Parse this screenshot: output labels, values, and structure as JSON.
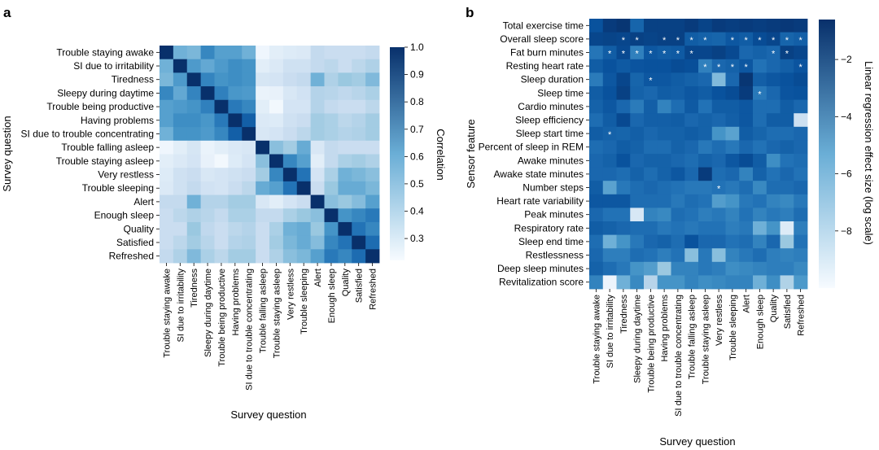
{
  "chart_data": [
    {
      "type": "heatmap",
      "panel": "a",
      "ylabel": "Survey question",
      "xlabel": "Survey question",
      "rows": [
        "Trouble staying awake",
        "SI due to irritability",
        "Tiredness",
        "Sleepy during daytime",
        "Trouble being productive",
        "Having problems",
        "SI due to trouble concentrating",
        "Trouble falling asleep",
        "Trouble staying asleep",
        "Very restless",
        "Trouble sleeping",
        "Alert",
        "Enough sleep",
        "Quality",
        "Satisfied",
        "Refreshed"
      ],
      "columns": [
        "Trouble staying awake",
        "SI due to irritability",
        "Tiredness",
        "Sleepy during daytime",
        "Trouble being productive",
        "Having problems",
        "SI due to trouble concentrating",
        "Trouble falling asleep",
        "Trouble staying asleep",
        "Very restless",
        "Trouble sleeping",
        "Alert",
        "Enough sleep",
        "Quality",
        "Satisfied",
        "Refreshed"
      ],
      "values": [
        [
          1.0,
          0.6,
          0.58,
          0.74,
          0.66,
          0.66,
          0.6,
          0.25,
          0.3,
          0.32,
          0.33,
          0.42,
          0.4,
          0.4,
          0.4,
          0.42
        ],
        [
          0.6,
          1.0,
          0.68,
          0.63,
          0.68,
          0.72,
          0.7,
          0.3,
          0.33,
          0.38,
          0.38,
          0.42,
          0.44,
          0.4,
          0.44,
          0.47
        ],
        [
          0.58,
          0.68,
          1.0,
          0.75,
          0.7,
          0.72,
          0.7,
          0.35,
          0.36,
          0.4,
          0.42,
          0.6,
          0.47,
          0.52,
          0.5,
          0.57
        ],
        [
          0.74,
          0.63,
          0.75,
          1.0,
          0.76,
          0.69,
          0.68,
          0.27,
          0.28,
          0.34,
          0.37,
          0.46,
          0.45,
          0.43,
          0.45,
          0.48
        ],
        [
          0.66,
          0.68,
          0.7,
          0.76,
          1.0,
          0.78,
          0.74,
          0.3,
          0.24,
          0.36,
          0.36,
          0.46,
          0.42,
          0.4,
          0.4,
          0.44
        ],
        [
          0.66,
          0.72,
          0.72,
          0.69,
          0.78,
          1.0,
          0.86,
          0.33,
          0.32,
          0.38,
          0.4,
          0.5,
          0.48,
          0.44,
          0.46,
          0.5
        ],
        [
          0.6,
          0.7,
          0.7,
          0.68,
          0.74,
          0.86,
          1.0,
          0.34,
          0.36,
          0.4,
          0.44,
          0.5,
          0.48,
          0.46,
          0.47,
          0.5
        ],
        [
          0.25,
          0.3,
          0.35,
          0.27,
          0.3,
          0.33,
          0.34,
          1.0,
          0.55,
          0.5,
          0.62,
          0.34,
          0.42,
          0.4,
          0.4,
          0.4
        ],
        [
          0.3,
          0.33,
          0.36,
          0.28,
          0.24,
          0.32,
          0.36,
          0.55,
          1.0,
          0.74,
          0.66,
          0.3,
          0.42,
          0.48,
          0.5,
          0.47
        ],
        [
          0.32,
          0.38,
          0.4,
          0.34,
          0.36,
          0.38,
          0.4,
          0.5,
          0.74,
          1.0,
          0.8,
          0.36,
          0.48,
          0.6,
          0.58,
          0.55
        ],
        [
          0.33,
          0.38,
          0.42,
          0.37,
          0.36,
          0.4,
          0.44,
          0.62,
          0.66,
          0.8,
          1.0,
          0.4,
          0.52,
          0.62,
          0.62,
          0.58
        ],
        [
          0.42,
          0.42,
          0.6,
          0.46,
          0.46,
          0.5,
          0.5,
          0.34,
          0.3,
          0.36,
          0.4,
          1.0,
          0.55,
          0.52,
          0.56,
          0.66
        ],
        [
          0.4,
          0.44,
          0.47,
          0.45,
          0.42,
          0.48,
          0.48,
          0.42,
          0.42,
          0.48,
          0.52,
          0.55,
          1.0,
          0.7,
          0.74,
          0.78
        ],
        [
          0.4,
          0.4,
          0.52,
          0.43,
          0.4,
          0.44,
          0.46,
          0.4,
          0.48,
          0.6,
          0.62,
          0.52,
          0.7,
          1.0,
          0.8,
          0.74
        ],
        [
          0.4,
          0.44,
          0.5,
          0.45,
          0.4,
          0.46,
          0.47,
          0.4,
          0.5,
          0.58,
          0.62,
          0.56,
          0.74,
          0.8,
          1.0,
          0.82
        ],
        [
          0.42,
          0.47,
          0.57,
          0.48,
          0.44,
          0.5,
          0.5,
          0.4,
          0.47,
          0.55,
          0.58,
          0.66,
          0.78,
          0.74,
          0.82,
          1.0
        ]
      ],
      "colorbar": {
        "label": "Correlation",
        "min": 0.22,
        "max": 1.0,
        "ticks": [
          "1.0",
          "0.9",
          "0.8",
          "0.7",
          "0.6",
          "0.5",
          "0.4",
          "0.3"
        ],
        "tick_values": [
          1.0,
          0.9,
          0.8,
          0.7,
          0.6,
          0.5,
          0.4,
          0.3
        ]
      }
    },
    {
      "type": "heatmap",
      "panel": "b",
      "ylabel": "Sensor feature",
      "xlabel": "Survey question",
      "rows": [
        "Total exercise time",
        "Overall sleep score",
        "Fat burn minutes",
        "Resting heart rate",
        "Sleep duration",
        "Sleep time",
        "Cardio minutes",
        "Sleep efficiency",
        "Sleep start time",
        "Percent of sleep in REM",
        "Awake minutes",
        "Awake state minutes",
        "Number steps",
        "Heart rate variability",
        "Peak minutes",
        "Respiratory rate",
        "Sleep end time",
        "Restlessness",
        "Deep sleep minutes",
        "Revitalization score"
      ],
      "columns": [
        "Trouble staying awake",
        "SI due to irritability",
        "Tiredness",
        "Sleepy during daytime",
        "Trouble being productive",
        "Having problems",
        "SI due to trouble concentrating",
        "Trouble falling asleep",
        "Trouble staying asleep",
        "Very restless",
        "Trouble sleeping",
        "Alert",
        "Enough sleep",
        "Quality",
        "Satisfied",
        "Refreshed"
      ],
      "values": [
        [
          -1.8,
          -1.0,
          -0.8,
          -2.5,
          -1.2,
          -1.2,
          -1.2,
          -1.0,
          -1.3,
          -1.0,
          -1.1,
          -1.0,
          -1.1,
          -1.0,
          -0.9,
          -1.0
        ],
        [
          -1.4,
          -1.3,
          -1.4,
          -1.2,
          -1.3,
          -1.2,
          -1.2,
          -2.2,
          -2.4,
          -2.5,
          -2.0,
          -2.2,
          -1.6,
          -1.4,
          -2.5,
          -2.3
        ],
        [
          -3.1,
          -2.2,
          -1.5,
          -3.5,
          -2.0,
          -2.2,
          -2.1,
          -1.4,
          -1.4,
          -1.2,
          -1.5,
          -2.6,
          -2.4,
          -2.6,
          -1.2,
          -1.4
        ],
        [
          -2.2,
          -1.8,
          -2.1,
          -1.9,
          -1.8,
          -1.8,
          -1.6,
          -1.7,
          -3.5,
          -2.6,
          -2.4,
          -2.0,
          -3.0,
          -2.6,
          -2.3,
          -1.9
        ],
        [
          -3.3,
          -2.0,
          -1.4,
          -2.5,
          -2.0,
          -2.0,
          -2.2,
          -2.4,
          -2.6,
          -5.8,
          -2.6,
          -0.8,
          -2.3,
          -2.0,
          -1.8,
          -1.6
        ],
        [
          -2.2,
          -1.8,
          -1.2,
          -2.4,
          -2.6,
          -2.2,
          -2.3,
          -2.0,
          -2.2,
          -1.8,
          -1.6,
          -1.0,
          -3.2,
          -2.6,
          -1.9,
          -1.8
        ],
        [
          -2.4,
          -2.0,
          -2.6,
          -3.3,
          -2.3,
          -3.6,
          -2.8,
          -2.1,
          -3.0,
          -2.2,
          -2.2,
          -2.0,
          -2.8,
          -2.8,
          -2.2,
          -2.6
        ],
        [
          -2.8,
          -2.2,
          -1.5,
          -2.6,
          -2.3,
          -2.3,
          -2.2,
          -2.6,
          -2.4,
          -2.6,
          -2.3,
          -2.0,
          -2.8,
          -2.2,
          -2.2,
          -8.0
        ],
        [
          -2.2,
          -2.4,
          -2.5,
          -2.3,
          -2.6,
          -2.4,
          -2.4,
          -2.2,
          -2.4,
          -4.2,
          -4.8,
          -2.2,
          -2.5,
          -2.8,
          -2.8,
          -2.6
        ],
        [
          -2.8,
          -2.6,
          -2.2,
          -2.4,
          -2.8,
          -2.8,
          -2.4,
          -2.6,
          -3.2,
          -2.8,
          -3.2,
          -2.6,
          -3.0,
          -2.6,
          -2.4,
          -2.6
        ],
        [
          -2.6,
          -2.4,
          -1.8,
          -2.6,
          -2.4,
          -2.4,
          -2.6,
          -2.8,
          -2.4,
          -2.6,
          -2.0,
          -1.6,
          -2.2,
          -4.0,
          -3.0,
          -2.8
        ],
        [
          -2.6,
          -2.6,
          -2.8,
          -2.4,
          -2.8,
          -2.4,
          -2.0,
          -2.6,
          -1.0,
          -2.8,
          -2.6,
          -3.6,
          -2.4,
          -3.0,
          -2.6,
          -3.0
        ],
        [
          -2.2,
          -4.8,
          -3.2,
          -2.8,
          -2.6,
          -2.8,
          -3.0,
          -3.2,
          -3.2,
          -3.0,
          -3.2,
          -2.8,
          -3.8,
          -2.8,
          -2.8,
          -2.6
        ],
        [
          -2.0,
          -2.0,
          -2.0,
          -2.8,
          -2.8,
          -2.8,
          -3.2,
          -2.8,
          -3.0,
          -4.6,
          -4.2,
          -3.2,
          -3.0,
          -3.6,
          -3.8,
          -3.2
        ],
        [
          -2.6,
          -3.0,
          -3.0,
          -8.5,
          -3.6,
          -3.8,
          -2.8,
          -3.0,
          -3.4,
          -3.2,
          -3.6,
          -3.0,
          -3.6,
          -3.2,
          -3.4,
          -2.8
        ],
        [
          -2.2,
          -2.4,
          -2.6,
          -2.8,
          -2.8,
          -3.2,
          -3.0,
          -3.2,
          -3.0,
          -3.0,
          -3.4,
          -3.2,
          -5.4,
          -4.2,
          -8.8,
          -3.4
        ],
        [
          -2.8,
          -5.4,
          -4.2,
          -3.2,
          -2.6,
          -2.4,
          -2.8,
          -1.8,
          -2.6,
          -2.6,
          -3.0,
          -2.8,
          -3.6,
          -2.6,
          -6.4,
          -3.0
        ],
        [
          -2.6,
          -3.4,
          -3.4,
          -2.8,
          -3.0,
          -3.4,
          -3.0,
          -6.0,
          -3.2,
          -6.0,
          -3.6,
          -3.2,
          -2.8,
          -3.4,
          -3.6,
          -3.4
        ],
        [
          -2.4,
          -2.8,
          -3.2,
          -4.2,
          -4.6,
          -6.4,
          -3.6,
          -3.6,
          -3.2,
          -3.4,
          -4.0,
          -3.8,
          -3.6,
          -3.4,
          -3.4,
          -3.8
        ],
        [
          -3.6,
          -9.5,
          -5.4,
          -3.8,
          -7.2,
          -4.2,
          -4.2,
          -3.6,
          -4.0,
          -3.8,
          -3.6,
          -3.6,
          -5.4,
          -4.0,
          -7.0,
          -4.4
        ]
      ],
      "significant": [
        [
          1,
          2
        ],
        [
          1,
          3
        ],
        [
          1,
          5
        ],
        [
          1,
          6
        ],
        [
          1,
          7
        ],
        [
          1,
          8
        ],
        [
          1,
          10
        ],
        [
          1,
          11
        ],
        [
          1,
          12
        ],
        [
          1,
          13
        ],
        [
          1,
          14
        ],
        [
          1,
          15
        ],
        [
          1,
          16
        ],
        [
          2,
          1
        ],
        [
          2,
          2
        ],
        [
          2,
          3
        ],
        [
          2,
          4
        ],
        [
          2,
          5
        ],
        [
          2,
          6
        ],
        [
          2,
          7
        ],
        [
          2,
          13
        ],
        [
          2,
          14
        ],
        [
          3,
          8
        ],
        [
          3,
          9
        ],
        [
          3,
          10
        ],
        [
          3,
          11
        ],
        [
          3,
          15
        ],
        [
          3,
          16
        ],
        [
          4,
          4
        ],
        [
          5,
          12
        ],
        [
          8,
          1
        ],
        [
          12,
          9
        ]
      ],
      "colorbar": {
        "label": "Linear regression effect size (log scale)",
        "min": -10.0,
        "max": -0.6,
        "ticks": [
          "−2",
          "−4",
          "−6",
          "−8"
        ],
        "tick_values": [
          -2,
          -4,
          -6,
          -8
        ]
      }
    }
  ],
  "panel_labels": [
    "a",
    "b"
  ],
  "marker": "*"
}
